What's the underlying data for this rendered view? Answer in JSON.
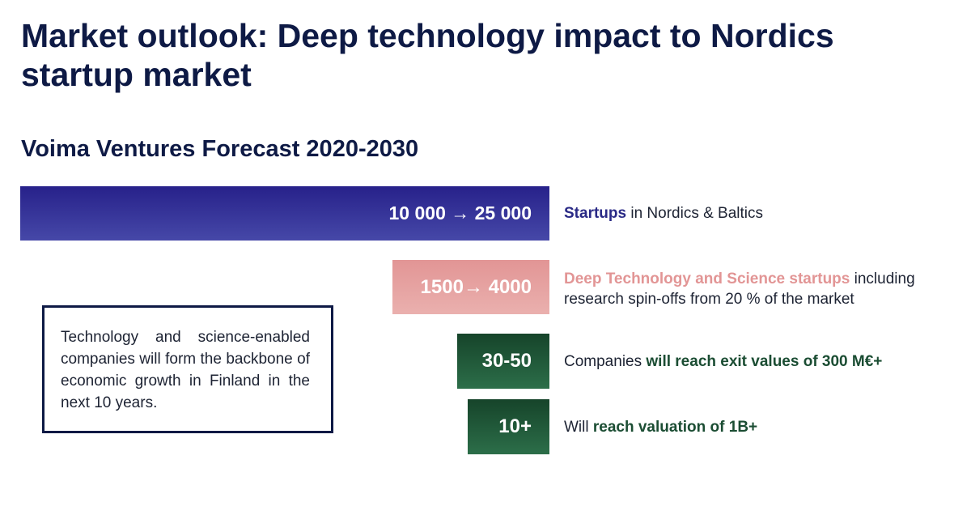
{
  "title": "Market outlook: Deep technology impact to Nordics startup market",
  "subtitle": "Voima Ventures Forecast 2020-2030",
  "rows": [
    {
      "value": "10 000 → 25 000",
      "highlight": "Startups",
      "rest": " in Nordics & Baltics",
      "color": "#2a2a86"
    },
    {
      "value": "1500→ 4000",
      "highlight": "Deep Technology and Science startups",
      "rest": " including research spin-offs from 20 % of the market",
      "color": "#e29595"
    },
    {
      "value": "30-50",
      "prefix": "Companies ",
      "highlight": "will reach exit values of 300 M€+",
      "color": "#1b4d33"
    },
    {
      "value": "10+",
      "prefix": "Will ",
      "highlight": "reach valuation of 1B+",
      "color": "#1b4d33"
    }
  ],
  "note": "Technology and science-enabled companies will form the backbone of economic growth in Finland in the next 10 years."
}
